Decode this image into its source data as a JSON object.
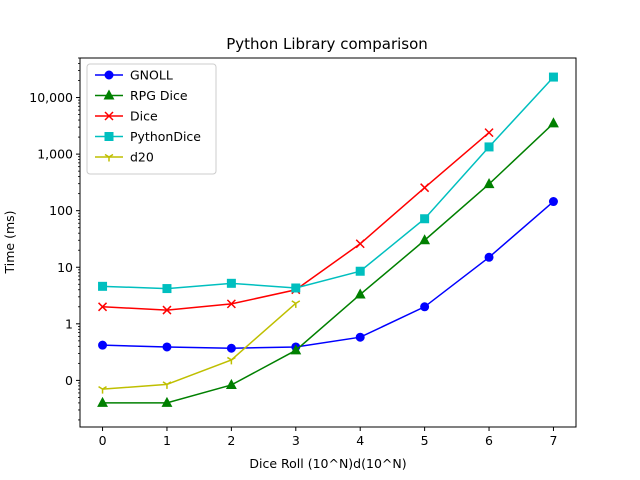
{
  "chart_data": {
    "type": "line",
    "title": "Python Library comparison",
    "xlabel": "Dice Roll (10^N)d(10^N)",
    "ylabel": "Time (ms)",
    "x": [
      0,
      1,
      2,
      3,
      4,
      5,
      6,
      7
    ],
    "x_tick_labels": [
      "0",
      "1",
      "2",
      "3",
      "4",
      "5",
      "6",
      "7"
    ],
    "y_scale": "log",
    "y_ticks": [
      0.1,
      1,
      10,
      100,
      1000,
      10000
    ],
    "y_tick_labels": [
      "0",
      "1",
      "10",
      "100",
      "1,000",
      "10,000"
    ],
    "ylim": [
      0.015,
      50000
    ],
    "xlim": [
      -0.35,
      7.35
    ],
    "legend_position": "upper-left",
    "series": [
      {
        "name": "GNOLL",
        "color": "#0000ff",
        "marker": "circle",
        "x": [
          0,
          1,
          2,
          3,
          4,
          5,
          6,
          7
        ],
        "values": [
          0.42,
          0.39,
          0.37,
          0.39,
          0.58,
          2.0,
          15,
          145
        ]
      },
      {
        "name": "RPG Dice",
        "color": "#008000",
        "marker": "triangle",
        "x": [
          0,
          1,
          2,
          3,
          4,
          5,
          6,
          7
        ],
        "values": [
          0.04,
          0.04,
          0.083,
          0.34,
          3.3,
          30,
          295,
          3500
        ]
      },
      {
        "name": "Dice",
        "color": "#ff0000",
        "marker": "x",
        "x": [
          0,
          1,
          2,
          3,
          4,
          5,
          6
        ],
        "values": [
          2.0,
          1.75,
          2.25,
          4.0,
          26,
          255,
          2400
        ]
      },
      {
        "name": "PythonDice",
        "color": "#00bfbf",
        "marker": "square",
        "x": [
          0,
          1,
          2,
          3,
          4,
          5,
          6,
          7
        ],
        "values": [
          4.6,
          4.2,
          5.2,
          4.3,
          8.5,
          72,
          1340,
          23000
        ]
      },
      {
        "name": "d20",
        "color": "#bfbf00",
        "marker": "tri-down",
        "x": [
          0,
          1,
          2,
          3
        ],
        "values": [
          0.07,
          0.085,
          0.23,
          2.3
        ]
      }
    ]
  }
}
